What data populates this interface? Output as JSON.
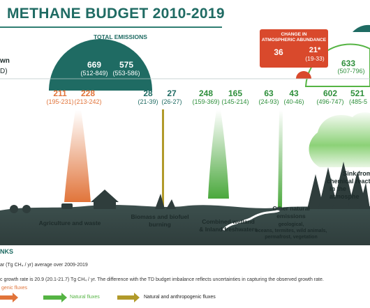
{
  "title": "METHANE BUDGET 2010-2019",
  "total_emissions": {
    "label": "TOTAL EMISSIONS",
    "td_value": "669",
    "td_range": "(512-849)",
    "bu_value": "575",
    "bu_range": "(553-586)"
  },
  "left_edge": {
    "text1": "wn",
    "text2": "D)"
  },
  "atmospheric_change": {
    "header_line1": "CHANGE IN",
    "header_line2": "ATMOSPHERIC ABUNDANCE",
    "td_value": "36",
    "bu_value": "21*",
    "bu_range": "(19-33)"
  },
  "sinks_total": {
    "value": "633",
    "range": "(507-796)"
  },
  "fluxes": [
    {
      "id": "agri-td",
      "value": "211",
      "range": "(195-231)",
      "color": "#e1743a"
    },
    {
      "id": "agri-bu",
      "value": "228",
      "range": "(213-242)",
      "color": "#e1743a"
    },
    {
      "id": "bio-td",
      "value": "28",
      "range": "(21-39)",
      "color": "#1f6b63"
    },
    {
      "id": "bio-bu",
      "value": "27",
      "range": "(26-27)",
      "color": "#1f6b63"
    },
    {
      "id": "wet-td",
      "value": "248",
      "range": "(159-369)",
      "color": "#2e8f3b"
    },
    {
      "id": "wet-bu",
      "value": "165",
      "range": "(145-214)",
      "color": "#2e8f3b"
    },
    {
      "id": "other-td",
      "value": "63",
      "range": "(24-93)",
      "color": "#2e8f3b"
    },
    {
      "id": "other-bu",
      "value": "43",
      "range": "(40-46)",
      "color": "#2e8f3b"
    },
    {
      "id": "sink-td",
      "value": "602",
      "range": "(496-747)",
      "color": "#2e8f3b"
    },
    {
      "id": "sink-bu",
      "value": "521",
      "range": "(485-5",
      "color": "#2e8f3b"
    }
  ],
  "labels": {
    "agriculture": "Agriculture and waste",
    "biomass_line1": "Biomass and biofuel",
    "biomass_line2": "burning",
    "wetland_line1": "Combined wetland",
    "wetland_line2": "& Inland freshwaters",
    "other_line1": "Other natural",
    "other_line2": "emissions",
    "other_sub1": "geological,",
    "other_sub2": "oceans, termites, wild animals,",
    "other_sub3": "permafrost, vegetation",
    "sink_line1": "Sink from",
    "sink_line2": "chemical reacti",
    "sink_line3": "in the atmosphe"
  },
  "footer": {
    "heading": "NKS",
    "line1": "ar (Tg CH₄ / yr) average over 2009-2019",
    "line2": "c growth rate is 20.9 (20.1-21.7) Tg CH₄ / yr. The difference with the TD budget imbalance reflects uncertainties in capturing the observed growth rate.",
    "legend_anthro": "genic fluxes",
    "legend_natural": "Natural fluxes",
    "legend_mixed": "Natural and anthropogenic  fluxes"
  },
  "colors": {
    "anthropogenic": "#e1743a",
    "natural": "#55b443",
    "mixed": "#b19a2a",
    "teal": "#1f6b63",
    "red_box": "#d9492c"
  }
}
